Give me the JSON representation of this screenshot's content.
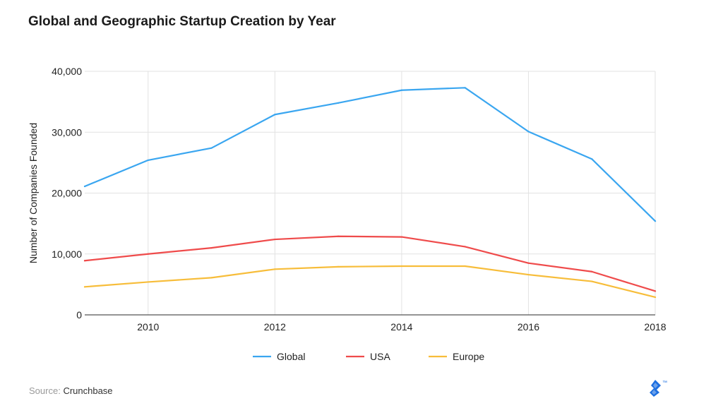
{
  "colors": {
    "global": "#3aa6f0",
    "usa": "#ef4b4b",
    "europe": "#f7bd3a",
    "grid": "#e2e2e2",
    "axis": "#555555",
    "logo": "#1d6fe0"
  },
  "source": {
    "label": "Source:",
    "value": "Crunchbase"
  },
  "logo": {
    "icon": "toptal-logo-icon",
    "mark": "™"
  },
  "chart_data": {
    "type": "line",
    "title": "Global and Geographic Startup Creation by Year",
    "xlabel": "",
    "ylabel": "Number of Companies Founded",
    "x": [
      2009,
      2010,
      2011,
      2012,
      2013,
      2014,
      2015,
      2016,
      2017,
      2018
    ],
    "xlim": [
      2009,
      2018
    ],
    "ylim": [
      0,
      40000
    ],
    "x_ticks": [
      "2010",
      "2012",
      "2014",
      "2016",
      "2018"
    ],
    "y_ticks": [
      "0",
      "10,000",
      "20,000",
      "30,000",
      "40,000"
    ],
    "grid": true,
    "legend_position": "bottom",
    "series": [
      {
        "name": "Global",
        "color": "#3aa6f0",
        "values": [
          21100,
          25400,
          27400,
          32900,
          34800,
          36900,
          37300,
          30100,
          25600,
          15400
        ]
      },
      {
        "name": "USA",
        "color": "#ef4b4b",
        "values": [
          8900,
          10000,
          11000,
          12400,
          12900,
          12800,
          11200,
          8500,
          7100,
          3900
        ]
      },
      {
        "name": "Europe",
        "color": "#f7bd3a",
        "values": [
          4600,
          5400,
          6100,
          7500,
          7900,
          8000,
          8000,
          6600,
          5500,
          2900
        ]
      }
    ]
  }
}
